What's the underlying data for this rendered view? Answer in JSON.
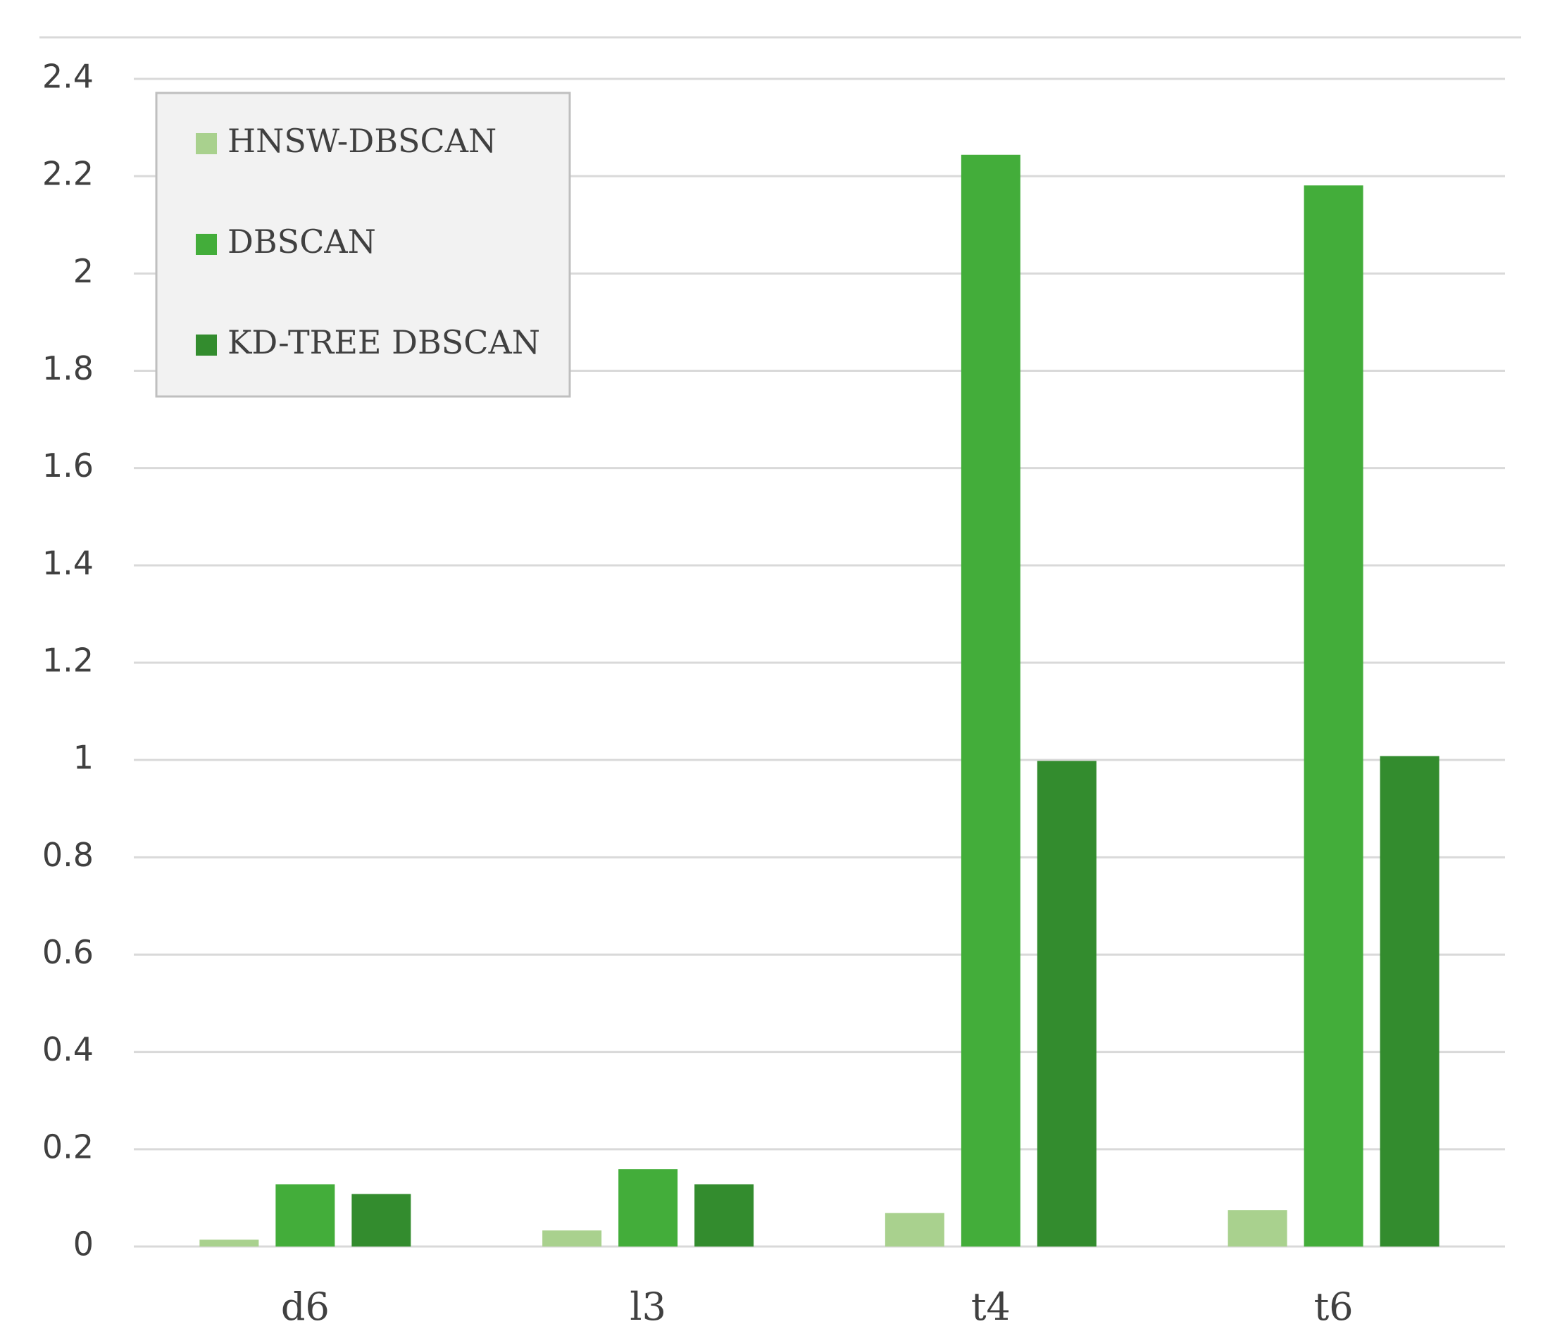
{
  "chart_data": {
    "type": "bar",
    "categories": [
      "d6",
      "l3",
      "t4",
      "t6"
    ],
    "series": [
      {
        "name": "HNSW-DBSCAN",
        "color": "#a9d18e",
        "values": [
          0.014,
          0.033,
          0.069,
          0.075
        ]
      },
      {
        "name": "DBSCAN",
        "color": "#43ad3a",
        "values": [
          0.128,
          0.159,
          2.244,
          2.181
        ]
      },
      {
        "name": "KD-TREE DBSCAN",
        "color": "#338c2e",
        "values": [
          0.108,
          0.128,
          0.998,
          1.008
        ]
      }
    ],
    "ylim": [
      0,
      2.4
    ],
    "yticks": [
      0,
      0.2,
      0.4,
      0.6,
      0.8,
      1,
      1.2,
      1.4,
      1.6,
      1.8,
      2,
      2.2,
      2.4
    ],
    "grid": true,
    "legend": "upper left"
  }
}
